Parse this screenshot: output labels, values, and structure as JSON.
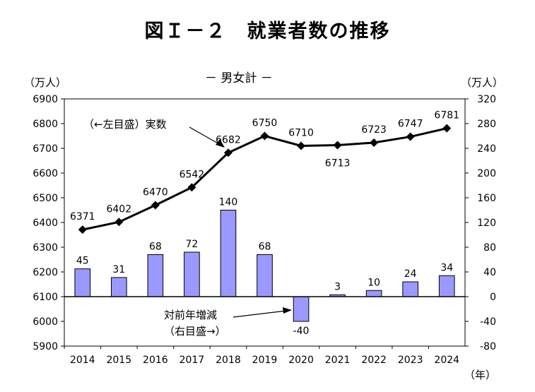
{
  "chart_data": {
    "type": "bar+line",
    "title": "図Ｉ－２　就業者数の推移",
    "subtitle": "－ 男女計 －",
    "categories": [
      "2014",
      "2015",
      "2016",
      "2017",
      "2018",
      "2019",
      "2020",
      "2021",
      "2022",
      "2023",
      "2024"
    ],
    "xlabel": "（年）",
    "series": [
      {
        "name": "実数",
        "axis": "left",
        "type": "line",
        "values": [
          6371,
          6402,
          6470,
          6542,
          6682,
          6750,
          6710,
          6713,
          6723,
          6747,
          6781
        ]
      },
      {
        "name": "対前年増減",
        "axis": "right",
        "type": "bar",
        "values": [
          45,
          31,
          68,
          72,
          140,
          68,
          -40,
          3,
          10,
          24,
          34
        ]
      }
    ],
    "y_left": {
      "label": "（万人）",
      "ylim": [
        5900,
        6900
      ],
      "ticks": [
        5900,
        6000,
        6100,
        6200,
        6300,
        6400,
        6500,
        6600,
        6700,
        6800,
        6900
      ]
    },
    "y_right": {
      "label": "（万人）",
      "ylim": [
        -80,
        320
      ],
      "ticks": [
        -80,
        -40,
        0,
        40,
        80,
        120,
        160,
        200,
        240,
        280,
        320
      ]
    },
    "annotations": {
      "line": "（←左目盛）実数",
      "bar_line1": "対前年増減",
      "bar_line2": "（右目盛→）"
    },
    "colors": {
      "bar_fill": "#9999ff",
      "bar_stroke": "#000000",
      "line": "#000000"
    },
    "grid": false
  }
}
